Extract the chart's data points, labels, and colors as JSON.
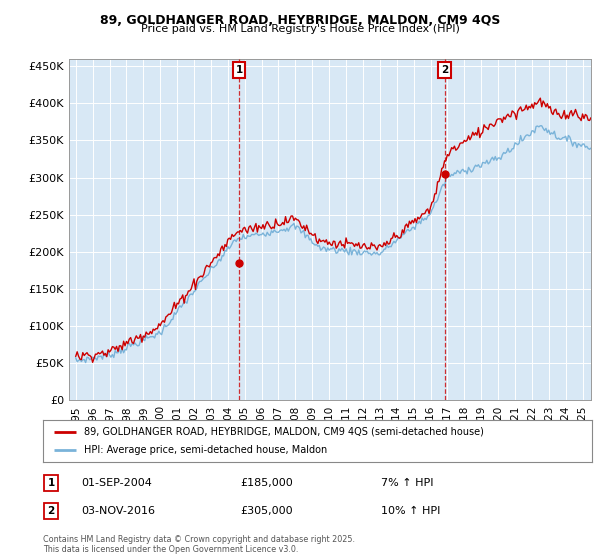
{
  "title_line1": "89, GOLDHANGER ROAD, HEYBRIDGE, MALDON, CM9 4QS",
  "title_line2": "Price paid vs. HM Land Registry's House Price Index (HPI)",
  "ylabel_ticks": [
    "£0",
    "£50K",
    "£100K",
    "£150K",
    "£200K",
    "£250K",
    "£300K",
    "£350K",
    "£400K",
    "£450K"
  ],
  "ytick_values": [
    0,
    50000,
    100000,
    150000,
    200000,
    250000,
    300000,
    350000,
    400000,
    450000
  ],
  "ylim": [
    0,
    460000
  ],
  "xlim_start": 1994.6,
  "xlim_end": 2025.5,
  "background_color": "#d8e8f5",
  "hpi_color": "#7ab3d9",
  "price_color": "#cc0000",
  "marker1_x": 2004.67,
  "marker1_y": 185000,
  "marker1_label": "1",
  "marker1_date": "01-SEP-2004",
  "marker1_price": "£185,000",
  "marker1_hpi": "7% ↑ HPI",
  "marker2_x": 2016.84,
  "marker2_y": 305000,
  "marker2_label": "2",
  "marker2_date": "03-NOV-2016",
  "marker2_price": "£305,000",
  "marker2_hpi": "10% ↑ HPI",
  "legend_line1": "89, GOLDHANGER ROAD, HEYBRIDGE, MALDON, CM9 4QS (semi-detached house)",
  "legend_line2": "HPI: Average price, semi-detached house, Maldon",
  "footnote": "Contains HM Land Registry data © Crown copyright and database right 2025.\nThis data is licensed under the Open Government Licence v3.0."
}
